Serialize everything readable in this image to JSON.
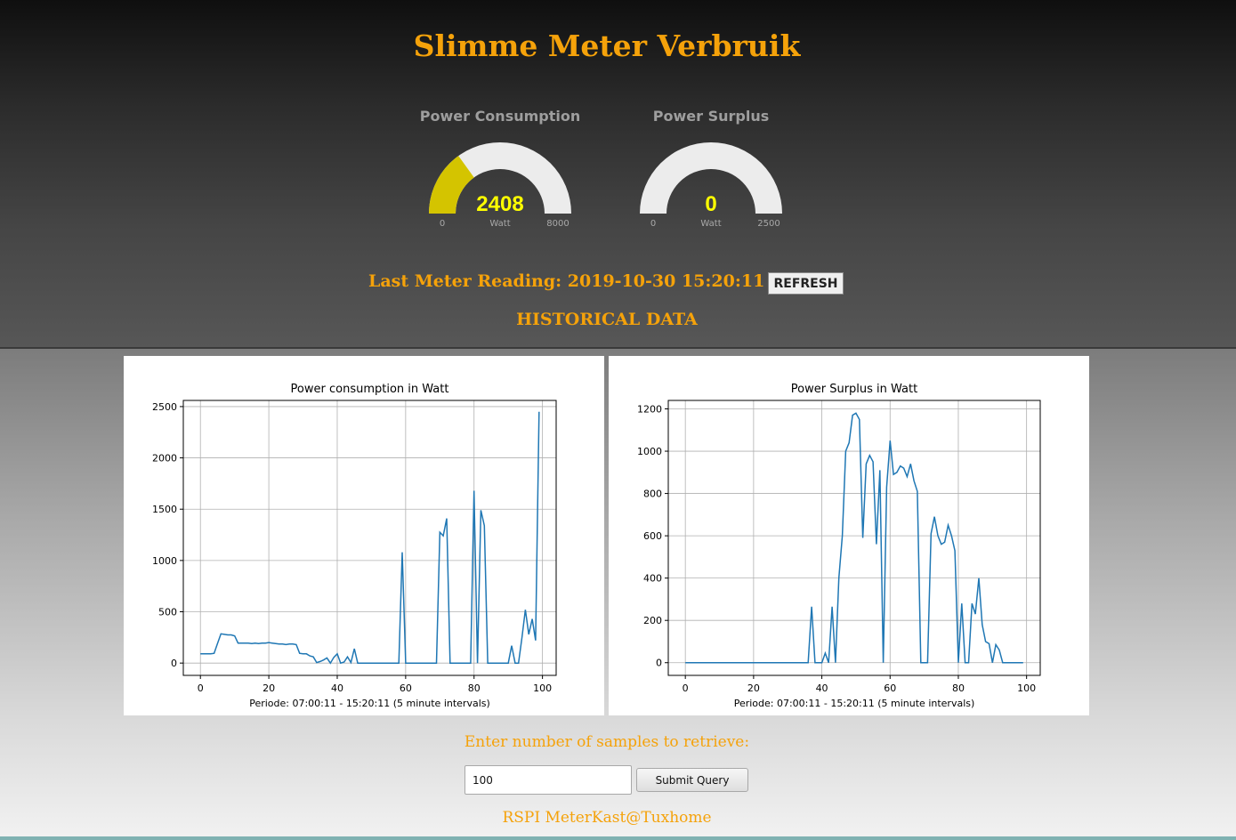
{
  "app": {
    "title": "Slimme Meter Verbruik"
  },
  "gauges": [
    {
      "title": "Power Consumption",
      "value": "2408",
      "unit": "Watt",
      "min": "0",
      "max": "8000",
      "fill_fraction": 0.301,
      "fill_color": "#d4c400",
      "track_color": "#ececec",
      "value_color": "#ffff00"
    },
    {
      "title": "Power Surplus",
      "value": "0",
      "unit": "Watt",
      "min": "0",
      "max": "2500",
      "fill_fraction": 0,
      "fill_color": "#d4c400",
      "track_color": "#ececec",
      "value_color": "#ffff00"
    }
  ],
  "reading": {
    "label": "Last Meter Reading: 2019-10-30 15:20:11",
    "refresh_label": "REFRESH"
  },
  "historical": {
    "heading": "HISTORICAL DATA"
  },
  "form": {
    "label": "Enter number of samples to retrieve:",
    "samples_value": "100",
    "submit_label": "Submit Query"
  },
  "footer": {
    "text": "RSPI MeterKast@Tuxhome"
  },
  "colors": {
    "accent": "#f5a20a",
    "line": "#1f77b4"
  },
  "chart_data": [
    {
      "type": "line",
      "title": "Power consumption in Watt",
      "xlabel": "Periode: 07:00:11 - 15:20:11 (5 minute intervals)",
      "ylabel": "",
      "grid": true,
      "xlim": [
        -5,
        104
      ],
      "ylim": [
        -120,
        2560
      ],
      "xticks": [
        0,
        20,
        40,
        60,
        80,
        100
      ],
      "yticks": [
        0,
        500,
        1000,
        1500,
        2000,
        2500
      ],
      "series": [
        {
          "x": [
            0,
            1,
            2,
            3,
            4,
            5,
            6,
            7,
            8,
            9,
            10,
            11,
            12,
            13,
            14,
            15,
            16,
            17,
            18,
            19,
            20,
            21,
            22,
            23,
            24,
            25,
            26,
            27,
            28,
            29,
            30,
            31,
            32,
            33,
            34,
            35,
            36,
            37,
            38,
            39,
            40,
            41,
            42,
            43,
            44,
            45,
            46,
            47,
            48,
            49,
            50,
            51,
            52,
            53,
            54,
            55,
            56,
            57,
            58,
            59,
            60,
            61,
            62,
            63,
            64,
            65,
            66,
            67,
            68,
            69,
            70,
            71,
            72,
            73,
            74,
            75,
            76,
            77,
            78,
            79,
            80,
            81,
            82,
            83,
            84,
            85,
            86,
            87,
            88,
            89,
            90,
            91,
            92,
            93,
            94,
            95,
            96,
            97,
            98,
            99
          ],
          "y": [
            90,
            90,
            90,
            90,
            95,
            190,
            285,
            280,
            275,
            275,
            265,
            195,
            195,
            195,
            195,
            190,
            195,
            190,
            195,
            195,
            200,
            195,
            190,
            185,
            185,
            180,
            185,
            185,
            180,
            95,
            90,
            90,
            70,
            60,
            5,
            15,
            30,
            50,
            0,
            55,
            90,
            0,
            10,
            60,
            5,
            140,
            0,
            0,
            0,
            0,
            0,
            0,
            0,
            0,
            0,
            0,
            0,
            0,
            0,
            1080,
            0,
            0,
            0,
            0,
            0,
            0,
            0,
            0,
            0,
            0,
            1275,
            1240,
            1410,
            0,
            0,
            0,
            0,
            0,
            0,
            0,
            1680,
            0,
            1490,
            1340,
            0,
            0,
            0,
            0,
            0,
            0,
            0,
            170,
            0,
            0,
            250,
            520,
            280,
            430,
            220,
            2450
          ]
        }
      ]
    },
    {
      "type": "line",
      "title": "Power Surplus in Watt",
      "xlabel": "Periode: 07:00:11 - 15:20:11 (5 minute intervals)",
      "ylabel": "",
      "grid": true,
      "xlim": [
        -5,
        104
      ],
      "ylim": [
        -60,
        1240
      ],
      "xticks": [
        0,
        20,
        40,
        60,
        80,
        100
      ],
      "yticks": [
        0,
        200,
        400,
        600,
        800,
        1000,
        1200
      ],
      "series": [
        {
          "x": [
            0,
            1,
            2,
            3,
            4,
            5,
            6,
            7,
            8,
            9,
            10,
            11,
            12,
            13,
            14,
            15,
            16,
            17,
            18,
            19,
            20,
            21,
            22,
            23,
            24,
            25,
            26,
            27,
            28,
            29,
            30,
            31,
            32,
            33,
            34,
            35,
            36,
            37,
            38,
            39,
            40,
            41,
            42,
            43,
            44,
            45,
            46,
            47,
            48,
            49,
            50,
            51,
            52,
            53,
            54,
            55,
            56,
            57,
            58,
            59,
            60,
            61,
            62,
            63,
            64,
            65,
            66,
            67,
            68,
            69,
            70,
            71,
            72,
            73,
            74,
            75,
            76,
            77,
            78,
            79,
            80,
            81,
            82,
            83,
            84,
            85,
            86,
            87,
            88,
            89,
            90,
            91,
            92,
            93,
            94,
            95,
            96,
            97,
            98,
            99
          ],
          "y": [
            0,
            0,
            0,
            0,
            0,
            0,
            0,
            0,
            0,
            0,
            0,
            0,
            0,
            0,
            0,
            0,
            0,
            0,
            0,
            0,
            0,
            0,
            0,
            0,
            0,
            0,
            0,
            0,
            0,
            0,
            0,
            0,
            0,
            0,
            0,
            0,
            0,
            265,
            0,
            0,
            0,
            45,
            0,
            265,
            0,
            400,
            600,
            1000,
            1040,
            1170,
            1180,
            1150,
            590,
            940,
            980,
            950,
            560,
            910,
            0,
            830,
            1050,
            890,
            900,
            930,
            920,
            880,
            940,
            860,
            810,
            0,
            0,
            0,
            610,
            690,
            600,
            560,
            570,
            650,
            600,
            530,
            0,
            280,
            0,
            0,
            280,
            230,
            400,
            180,
            100,
            90,
            0,
            85,
            60,
            0,
            0,
            0,
            0,
            0,
            0,
            0
          ]
        }
      ]
    }
  ]
}
